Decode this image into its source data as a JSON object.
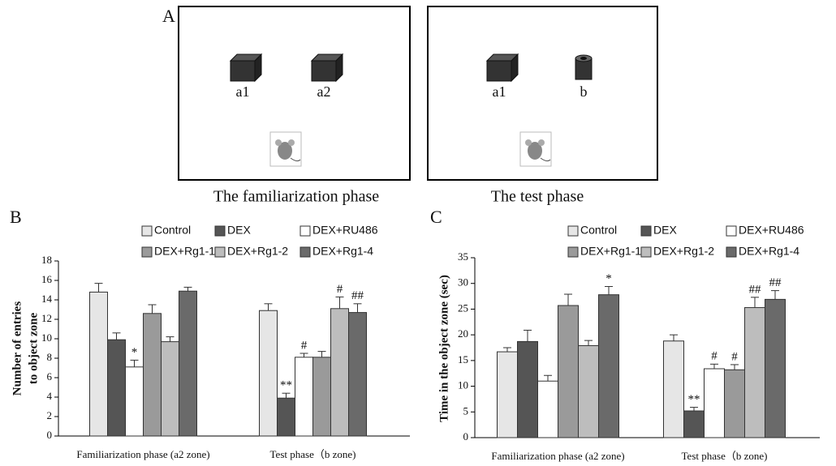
{
  "panel_a": {
    "label": "A",
    "left": {
      "objects": [
        "a1",
        "a2"
      ],
      "caption": "The familiarization phase"
    },
    "right": {
      "objects": [
        "a1",
        "b"
      ],
      "caption": "The test phase"
    }
  },
  "chart_data": [
    {
      "type": "bar",
      "label": "B",
      "ylabel": [
        "Number of entries",
        "to object zone"
      ],
      "categories": [
        "Familiarization phase (a2 zone)",
        "Test phase（b zone)"
      ],
      "ylim": [
        0,
        18
      ],
      "yticks": [
        0,
        2,
        4,
        6,
        8,
        10,
        12,
        14,
        16,
        18
      ],
      "series": [
        {
          "name": "Control",
          "color": "#e6e6e6",
          "values": [
            14.8,
            12.9
          ],
          "errors": [
            0.9,
            0.7
          ],
          "marks": [
            null,
            null
          ]
        },
        {
          "name": "DEX",
          "color": "#555555",
          "values": [
            9.9,
            3.9
          ],
          "errors": [
            0.7,
            0.5
          ],
          "marks": [
            null,
            "**"
          ]
        },
        {
          "name": "DEX+RU486",
          "color": "#ffffff",
          "values": [
            7.1,
            8.1
          ],
          "errors": [
            0.7,
            0.4
          ],
          "marks": [
            "*",
            "#"
          ]
        },
        {
          "name": "DEX+Rg1-1",
          "color": "#9a9a9a",
          "values": [
            12.6,
            8.1
          ],
          "errors": [
            0.9,
            0.6
          ],
          "marks": [
            null,
            null
          ]
        },
        {
          "name": "DEX+Rg1-2",
          "color": "#bdbdbd",
          "values": [
            9.7,
            13.1
          ],
          "errors": [
            0.5,
            1.2
          ],
          "marks": [
            null,
            "#"
          ]
        },
        {
          "name": "DEX+Rg1-4",
          "color": "#6a6a6a",
          "values": [
            14.9,
            12.7
          ],
          "errors": [
            0.4,
            0.9
          ],
          "marks": [
            null,
            "##"
          ]
        }
      ]
    },
    {
      "type": "bar",
      "label": "C",
      "ylabel": [
        "Time in the object zone (sec)"
      ],
      "categories": [
        "Familiarization phase (a2 zone)",
        "Test phase（b zone)"
      ],
      "ylim": [
        0,
        35
      ],
      "yticks": [
        0,
        5,
        10,
        15,
        20,
        25,
        30,
        35
      ],
      "series": [
        {
          "name": "Control",
          "color": "#e6e6e6",
          "values": [
            16.7,
            18.8
          ],
          "errors": [
            0.8,
            1.2
          ],
          "marks": [
            null,
            null
          ]
        },
        {
          "name": "DEX",
          "color": "#555555",
          "values": [
            18.7,
            5.2
          ],
          "errors": [
            2.2,
            0.7
          ],
          "marks": [
            null,
            "**"
          ]
        },
        {
          "name": "DEX+RU486",
          "color": "#ffffff",
          "values": [
            11,
            13.4
          ],
          "errors": [
            1.1,
            0.9
          ],
          "marks": [
            null,
            "#"
          ]
        },
        {
          "name": "DEX+Rg1-1",
          "color": "#9a9a9a",
          "values": [
            25.7,
            13.2
          ],
          "errors": [
            2.2,
            1.0
          ],
          "marks": [
            null,
            "#"
          ]
        },
        {
          "name": "DEX+Rg1-2",
          "color": "#bdbdbd",
          "values": [
            17.9,
            25.3
          ],
          "errors": [
            1.0,
            2.0
          ],
          "marks": [
            null,
            "##"
          ]
        },
        {
          "name": "DEX+Rg1-4",
          "color": "#6a6a6a",
          "values": [
            27.8,
            26.9
          ],
          "errors": [
            1.6,
            1.7
          ],
          "marks": [
            "*",
            "##"
          ]
        }
      ]
    }
  ]
}
